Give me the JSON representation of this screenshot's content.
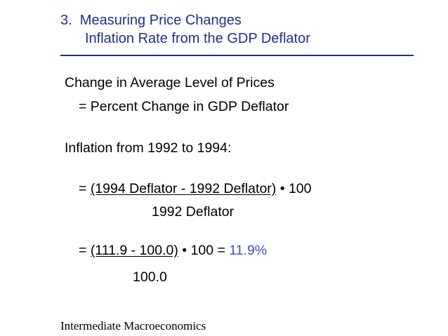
{
  "title": {
    "line1": "3.  Measuring Price Changes",
    "line2": "Inflation Rate from the GDP Deflator"
  },
  "body": {
    "definition_line1": "Change in Average Level of Prices",
    "definition_line2": "= Percent Change in GDP Deflator",
    "inflation_heading": "Inflation from 1992 to 1994:",
    "formula": {
      "equals": "=",
      "numerator": "(1994 Deflator - 1992 Deflator)",
      "times": "• 100",
      "denominator": "1992 Deflator"
    },
    "calculation": {
      "equals": "=",
      "numerator": "(111.9 - 100.0)",
      "times": "• 100 =",
      "result": "11.9%",
      "denominator": "100.0"
    }
  },
  "footer": {
    "text": "Intermediate  Macroeconomics"
  },
  "colors": {
    "title": "#1f2f8a",
    "result_accent": "#3f4ec8",
    "text": "#000000"
  }
}
